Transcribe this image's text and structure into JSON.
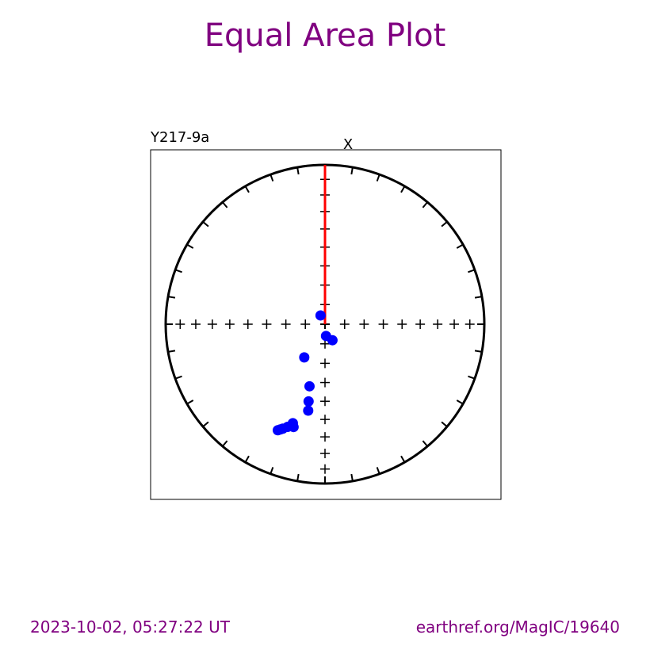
{
  "page": {
    "title": "Equal Area Plot",
    "footer_left": "2023-10-02, 05:27:22 UT",
    "footer_right": "earthref.org/MagIC/19640"
  },
  "colors": {
    "title": "#800080",
    "points": "#0000ff",
    "axis_line": "#ff0000",
    "frame": "#000000"
  },
  "chart_data": {
    "type": "scatter",
    "projection": "equal-area",
    "specimen_label": "Y217-9a",
    "axis_label": "X",
    "grid": false,
    "points": [
      {
        "dec": 333,
        "inc": 85
      },
      {
        "dec": 175,
        "inc": 84
      },
      {
        "dec": 155,
        "inc": 81
      },
      {
        "dec": 212,
        "inc": 70
      },
      {
        "dec": 194,
        "inc": 57
      },
      {
        "dec": 192,
        "inc": 49
      },
      {
        "dec": 191,
        "inc": 44
      },
      {
        "dec": 198,
        "inc": 35
      },
      {
        "dec": 197,
        "inc": 33
      },
      {
        "dec": 200,
        "inc": 32
      },
      {
        "dec": 202,
        "inc": 30
      },
      {
        "dec": 203,
        "inc": 29
      },
      {
        "dec": 204,
        "inc": 28
      }
    ],
    "reference_line": {
      "dec": 0,
      "inc": 0
    }
  }
}
